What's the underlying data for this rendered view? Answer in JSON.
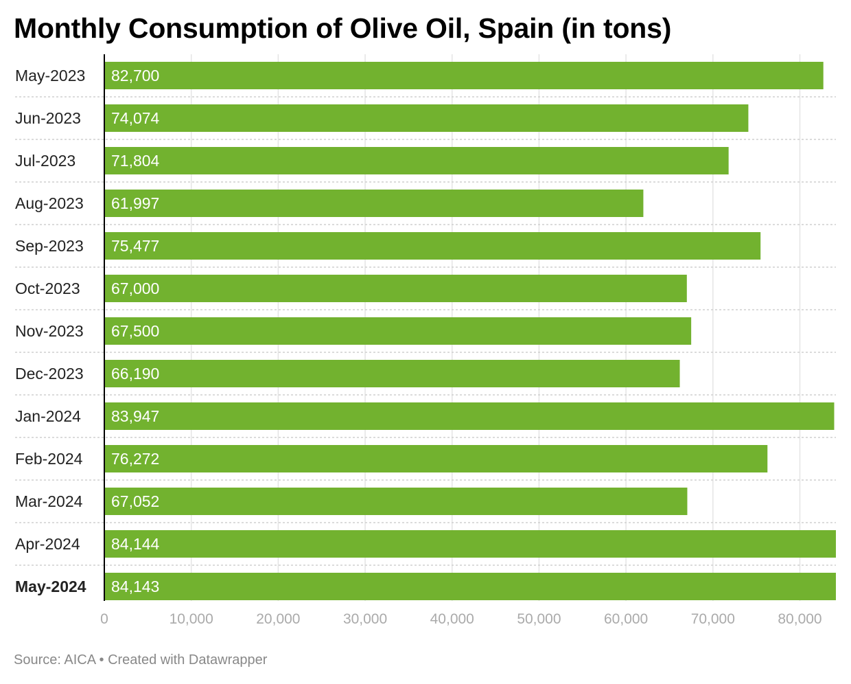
{
  "chart_data": {
    "type": "bar",
    "orientation": "horizontal",
    "title": "Monthly Consumption of Olive Oil, Spain (in tons)",
    "categories": [
      "May-2023",
      "Jun-2023",
      "Jul-2023",
      "Aug-2023",
      "Sep-2023",
      "Oct-2023",
      "Nov-2023",
      "Dec-2023",
      "Jan-2024",
      "Feb-2024",
      "Mar-2024",
      "Apr-2024",
      "May-2024"
    ],
    "values": [
      82700,
      74074,
      71804,
      61997,
      75477,
      67000,
      67500,
      66190,
      83947,
      76272,
      67052,
      84144,
      84143
    ],
    "value_labels": [
      "82,700",
      "74,074",
      "71,804",
      "61,997",
      "75,477",
      "67,000",
      "67,500",
      "66,190",
      "83,947",
      "76,272",
      "67,052",
      "84,144",
      "84,143"
    ],
    "highlighted_category": "May-2024",
    "xlim": [
      0,
      84144
    ],
    "x_ticks": [
      0,
      10000,
      20000,
      30000,
      40000,
      50000,
      60000,
      70000,
      80000
    ],
    "x_tick_labels": [
      "0",
      "10,000",
      "20,000",
      "30,000",
      "40,000",
      "50,000",
      "60,000",
      "70,000",
      "80,000"
    ],
    "grid": true,
    "bar_color": "#72b22f"
  },
  "footer": {
    "source": "Source: AICA • Created with Datawrapper"
  }
}
